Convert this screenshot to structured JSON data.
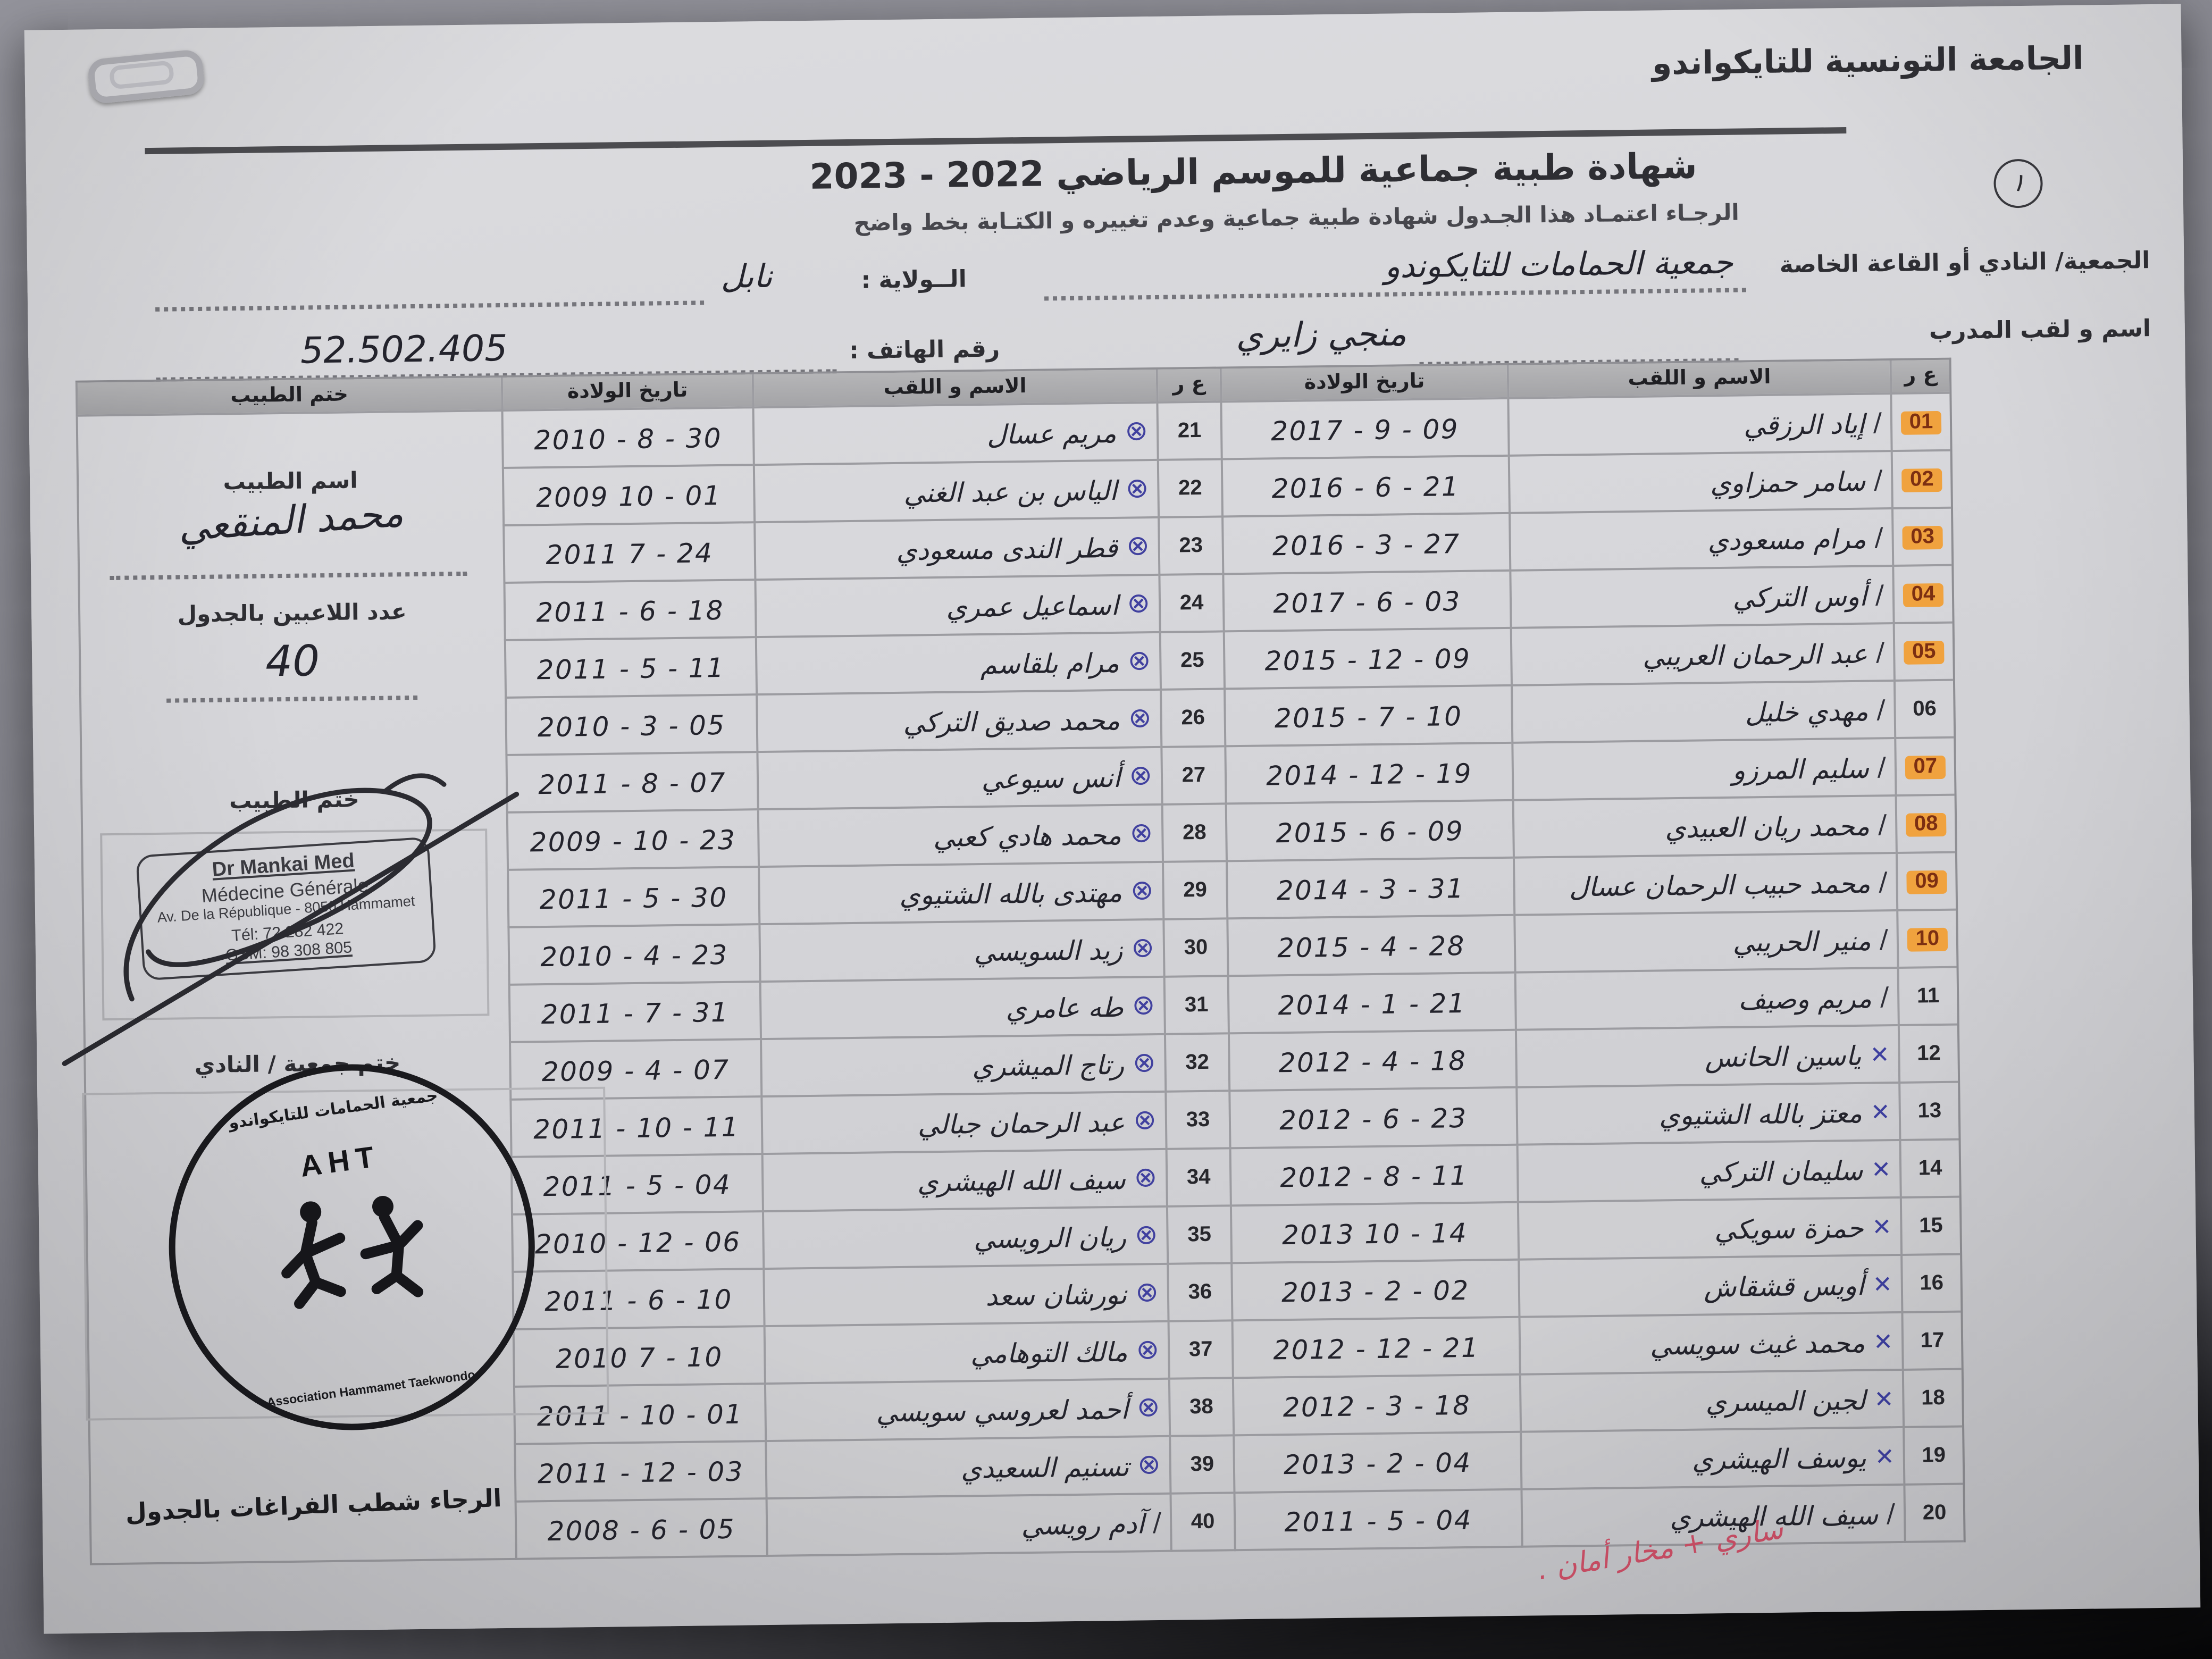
{
  "letterhead": {
    "federation": "الجامعة التونسية للتايكواندو"
  },
  "page_number": "١",
  "title": {
    "text": "شهادة طبية جماعية  للموسم الرياضي",
    "season_display": "2023 - 2022"
  },
  "subtitle": "الرجـاء اعتمـاد هذا الجـدول  شهادة طبية جماعية وعدم تغييره و الكتـابة بخط واضح",
  "form": {
    "club_label": "الجمعية/ النادي أو القاعة الخاصة",
    "club_value": "جمعية الحمامات للتايكوندو",
    "state_label": "الــولاية :",
    "state_value": "نابل",
    "coach_label": "اسم و لقب المدرب",
    "coach_value": "منجي زايري",
    "phone_label": "رقم الهاتف :",
    "phone_value": "52.502.405"
  },
  "table": {
    "headers": {
      "num": "ع ر",
      "name": "الاسم و اللقب",
      "dob": "تاريخ الولادة",
      "doctor_stamp": "ختم الطبيب"
    },
    "rows_right": [
      {
        "n": "01",
        "name": "إياد الرزقي",
        "dob": "2017 - 9 - 09",
        "mark": "slash",
        "hl": true
      },
      {
        "n": "02",
        "name": "سامر حمزاوي",
        "dob": "2016 - 6 - 21",
        "mark": "slash",
        "hl": true
      },
      {
        "n": "03",
        "name": "مرام مسعودي",
        "dob": "2016 - 3 - 27",
        "mark": "slash",
        "hl": true
      },
      {
        "n": "04",
        "name": "أوس التركي",
        "dob": "2017 - 6 - 03",
        "mark": "slash",
        "hl": true
      },
      {
        "n": "05",
        "name": "عبد الرحمان العريبي",
        "dob": "2015 - 12 - 09",
        "mark": "slash",
        "hl": true
      },
      {
        "n": "06",
        "name": "مهدي خليل",
        "dob": "2015 - 7 - 10",
        "mark": "slash",
        "hl": false
      },
      {
        "n": "07",
        "name": "سليم المرزو",
        "dob": "2014 - 12 - 19",
        "mark": "slash",
        "hl": true
      },
      {
        "n": "08",
        "name": "محمد ريان العبيدي",
        "dob": "2015 - 6 - 09",
        "mark": "slash",
        "hl": true
      },
      {
        "n": "09",
        "name": "محمد حبيب الرحمان عسال",
        "dob": "2014 - 3 - 31",
        "mark": "slash",
        "hl": true
      },
      {
        "n": "10",
        "name": "منير الحريبي",
        "dob": "2015 - 4 - 28",
        "mark": "slash",
        "hl": true
      },
      {
        "n": "11",
        "name": "مريم وصيف",
        "dob": "2014 - 1 - 21",
        "mark": "slash",
        "hl": false
      },
      {
        "n": "12",
        "name": "ياسين الحانس",
        "dob": "2012 - 4 - 18",
        "mark": "x",
        "hl": false
      },
      {
        "n": "13",
        "name": "معتز بالله الشتيوي",
        "dob": "2012 - 6 - 23",
        "mark": "x",
        "hl": false
      },
      {
        "n": "14",
        "name": "سليمان التركي",
        "dob": "2012 - 8 - 11",
        "mark": "x",
        "hl": false
      },
      {
        "n": "15",
        "name": "حمزة سويكي",
        "dob": "2013  10 - 14",
        "mark": "x",
        "hl": false
      },
      {
        "n": "16",
        "name": "أويس قشقاش",
        "dob": "2013 - 2 - 02",
        "mark": "x",
        "hl": false
      },
      {
        "n": "17",
        "name": "محمد غيث سويسي",
        "dob": "2012 - 12 - 21",
        "mark": "x",
        "hl": false
      },
      {
        "n": "18",
        "name": "لجين الميسري",
        "dob": "2012 - 3 - 18",
        "mark": "x",
        "hl": false
      },
      {
        "n": "19",
        "name": "يوسف الهيشري",
        "dob": "2013 - 2 - 04",
        "mark": "x",
        "hl": false
      },
      {
        "n": "20",
        "name": "سيف الله الهيشري",
        "dob": "2011 - 5 - 04",
        "mark": "slash",
        "hl": false
      }
    ],
    "rows_left": [
      {
        "n": "21",
        "name": "مريم عسال",
        "dob": "2010 - 8 - 30",
        "mark": "circle-x",
        "hl": false
      },
      {
        "n": "22",
        "name": "الياس بن عبد الغني",
        "dob": "2009  10 - 01",
        "mark": "circle-x",
        "hl": false
      },
      {
        "n": "23",
        "name": "قطر الندى مسعودي",
        "dob": "2011  7 - 24",
        "mark": "circle-x",
        "hl": false
      },
      {
        "n": "24",
        "name": "اسماعيل عمري",
        "dob": "2011 - 6 - 18",
        "mark": "circle-x",
        "hl": false
      },
      {
        "n": "25",
        "name": "مرام بلقاسم",
        "dob": "2011 - 5 - 11",
        "mark": "circle-x",
        "hl": false
      },
      {
        "n": "26",
        "name": "محمد صديق التركي",
        "dob": "2010 - 3 - 05",
        "mark": "circle-x",
        "hl": false
      },
      {
        "n": "27",
        "name": "أنس سيوعي",
        "dob": "2011 - 8 - 07",
        "mark": "circle-x",
        "hl": false
      },
      {
        "n": "28",
        "name": "محمد هادي كعبي",
        "dob": "2009 - 10 - 23",
        "mark": "circle-x",
        "hl": false
      },
      {
        "n": "29",
        "name": "مهتدى بالله الشتيوي",
        "dob": "2011 - 5 - 30",
        "mark": "circle-x",
        "hl": false
      },
      {
        "n": "30",
        "name": "زيد السويسي",
        "dob": "2010 - 4 - 23",
        "mark": "circle-x",
        "hl": false
      },
      {
        "n": "31",
        "name": "طه عامري",
        "dob": "2011 - 7 - 31",
        "mark": "circle-x",
        "hl": false
      },
      {
        "n": "32",
        "name": "رتاج الميشري",
        "dob": "2009 - 4 - 07",
        "mark": "circle-x",
        "hl": false
      },
      {
        "n": "33",
        "name": "عبد الرحمان جبالي",
        "dob": "2011 - 10 - 11",
        "mark": "circle-x",
        "hl": false
      },
      {
        "n": "34",
        "name": "سيف الله الهيشري",
        "dob": "2011 - 5 - 04",
        "mark": "circle-x",
        "hl": false
      },
      {
        "n": "35",
        "name": "ريان الرويسي",
        "dob": "2010 - 12 - 06",
        "mark": "circle-x",
        "hl": false
      },
      {
        "n": "36",
        "name": "نورشان سعد",
        "dob": "2011 - 6 - 10",
        "mark": "circle-x",
        "hl": false
      },
      {
        "n": "37",
        "name": "مالك التوهامي",
        "dob": "2010  7 - 10",
        "mark": "circle-x",
        "hl": false
      },
      {
        "n": "38",
        "name": "أحمد لعروسي سويسي",
        "dob": "2011 - 10 - 01",
        "mark": "circle-x",
        "hl": false
      },
      {
        "n": "39",
        "name": "تسنيم السعيدي",
        "dob": "2011 - 12 - 03",
        "mark": "circle-x",
        "hl": false
      },
      {
        "n": "40",
        "name": "آدم رويسي",
        "dob": "2008 - 6 - 05",
        "mark": "slash",
        "hl": false
      }
    ]
  },
  "doctor_panel": {
    "doctor_name_label": "اسم الطبيب",
    "doctor_name_value": "محمد المنقعي",
    "players_count_label": "عدد اللاعبين بالجدول",
    "players_count_value": "40",
    "doctor_stamp_label": "ختم الطبيب",
    "stamp": {
      "line1": "Dr Mankai Med",
      "line2": "Médecine Générale",
      "line3": "Av. De la République - 8050 Hammamet",
      "line4": "Tél: 72 282 422",
      "line5": "GSM: 98 308 805"
    },
    "club_stamp_label": "ختم جمعية / النادي",
    "club_stamp": {
      "arc_top": "جمعية الحمامات للتايكواندو",
      "center": "AHT",
      "arc_bottom": "Association Hammamet Taekwondo"
    },
    "note": "الرجاء شطب  الفراغات بالجدول"
  },
  "annotations": {
    "red_note": "ساري + مخار أمان ."
  },
  "colors": {
    "highlight_orange": "#f0a23e",
    "blue_pen": "#3d3f9f",
    "red_pen": "#cf5068",
    "ink": "#23232c",
    "paper": "#d5d5d9"
  }
}
